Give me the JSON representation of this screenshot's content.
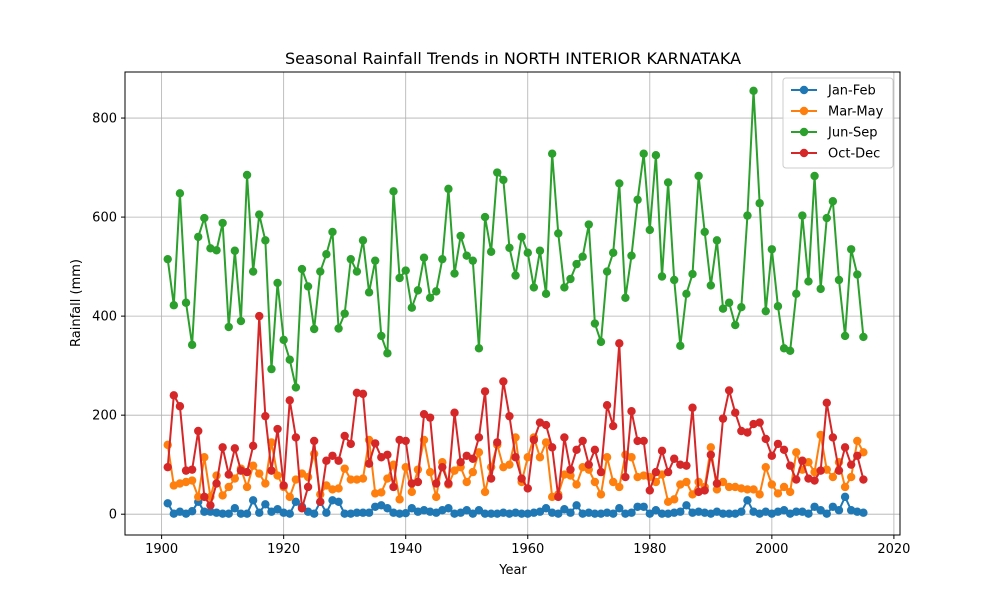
{
  "chart_data": {
    "type": "line",
    "title": "Seasonal Rainfall Trends in NORTH INTERIOR KARNATAKA",
    "xlabel": "Year",
    "ylabel": "Rainfall (mm)",
    "xlim": [
      1894,
      2021
    ],
    "ylim": [
      -42,
      893
    ],
    "xticks": [
      1900,
      1920,
      1940,
      1960,
      1980,
      2000,
      2020
    ],
    "yticks": [
      0,
      200,
      400,
      600,
      800
    ],
    "grid": true,
    "legend_position": "top-right",
    "x": [
      1901,
      1902,
      1903,
      1904,
      1905,
      1906,
      1907,
      1908,
      1909,
      1910,
      1911,
      1912,
      1913,
      1914,
      1915,
      1916,
      1917,
      1918,
      1919,
      1920,
      1921,
      1922,
      1923,
      1924,
      1925,
      1926,
      1927,
      1928,
      1929,
      1930,
      1931,
      1932,
      1933,
      1934,
      1935,
      1936,
      1937,
      1938,
      1939,
      1940,
      1941,
      1942,
      1943,
      1944,
      1945,
      1946,
      1947,
      1948,
      1949,
      1950,
      1951,
      1952,
      1953,
      1954,
      1955,
      1956,
      1957,
      1958,
      1959,
      1960,
      1961,
      1962,
      1963,
      1964,
      1965,
      1966,
      1967,
      1968,
      1969,
      1970,
      1971,
      1972,
      1973,
      1974,
      1975,
      1976,
      1977,
      1978,
      1979,
      1980,
      1981,
      1982,
      1983,
      1984,
      1985,
      1986,
      1987,
      1988,
      1989,
      1990,
      1991,
      1992,
      1993,
      1994,
      1995,
      1996,
      1997,
      1998,
      1999,
      2000,
      2001,
      2002,
      2003,
      2004,
      2005,
      2006,
      2007,
      2008,
      2009,
      2010,
      2011,
      2012,
      2013,
      2014,
      2015
    ],
    "series": [
      {
        "name": "Jan-Feb",
        "color": "#1f77b4",
        "values": [
          22,
          1,
          5,
          1,
          6,
          25,
          5,
          5,
          3,
          1,
          1,
          12,
          1,
          1,
          28,
          3,
          20,
          5,
          10,
          3,
          1,
          25,
          15,
          5,
          1,
          25,
          3,
          28,
          25,
          1,
          1,
          3,
          3,
          3,
          15,
          18,
          12,
          3,
          1,
          2,
          12,
          5,
          8,
          5,
          3,
          8,
          12,
          1,
          3,
          8,
          1,
          8,
          1,
          1,
          1,
          3,
          1,
          3,
          1,
          1,
          3,
          5,
          12,
          3,
          1,
          10,
          3,
          18,
          1,
          3,
          1,
          1,
          3,
          1,
          12,
          1,
          3,
          15,
          15,
          1,
          8,
          1,
          1,
          3,
          5,
          18,
          3,
          5,
          3,
          1,
          5,
          1,
          1,
          1,
          5,
          28,
          5,
          1,
          5,
          1,
          5,
          8,
          1,
          5,
          5,
          1,
          15,
          8,
          1,
          15,
          8,
          35,
          8,
          5,
          3
        ]
      },
      {
        "name": "Mar-May",
        "color": "#ff7f0e",
        "values": [
          140,
          58,
          62,
          65,
          68,
          35,
          115,
          35,
          78,
          38,
          55,
          72,
          92,
          55,
          98,
          82,
          62,
          145,
          78,
          55,
          35,
          70,
          82,
          75,
          122,
          40,
          58,
          50,
          52,
          92,
          70,
          70,
          72,
          150,
          42,
          44,
          72,
          100,
          30,
          95,
          45,
          90,
          150,
          85,
          35,
          105,
          60,
          88,
          95,
          65,
          85,
          125,
          45,
          95,
          140,
          95,
          100,
          155,
          65,
          115,
          155,
          115,
          145,
          35,
          40,
          80,
          78,
          60,
          95,
          90,
          65,
          40,
          115,
          65,
          55,
          120,
          115,
          75,
          78,
          75,
          65,
          80,
          25,
          30,
          60,
          65,
          40,
          65,
          55,
          135,
          50,
          65,
          55,
          55,
          52,
          50,
          50,
          40,
          95,
          60,
          42,
          55,
          45,
          125,
          90,
          105,
          85,
          160,
          90,
          75,
          105,
          55,
          75,
          148,
          125
        ]
      },
      {
        "name": "Jun-Sep",
        "color": "#2ca02c",
        "values": [
          515,
          422,
          648,
          427,
          342,
          560,
          598,
          537,
          533,
          588,
          378,
          532,
          390,
          685,
          490,
          605,
          553,
          293,
          467,
          352,
          312,
          256,
          495,
          460,
          374,
          490,
          525,
          570,
          375,
          405,
          515,
          490,
          553,
          448,
          512,
          360,
          325,
          652,
          477,
          492,
          417,
          452,
          518,
          437,
          450,
          515,
          657,
          486,
          562,
          522,
          512,
          335,
          600,
          530,
          690,
          675,
          538,
          482,
          560,
          528,
          458,
          532,
          445,
          728,
          567,
          458,
          475,
          505,
          520,
          585,
          385,
          348,
          490,
          528,
          668,
          437,
          522,
          635,
          728,
          574,
          725,
          480,
          670,
          473,
          340,
          445,
          485,
          683,
          570,
          462,
          553,
          415,
          427,
          382,
          418,
          603,
          855,
          628,
          410,
          535,
          420,
          335,
          330,
          445,
          603,
          470,
          683,
          455,
          598,
          632,
          473,
          360,
          535,
          484,
          358
        ]
      },
      {
        "name": "Oct-Dec",
        "color": "#d62728",
        "values": [
          95,
          240,
          218,
          88,
          90,
          168,
          35,
          18,
          62,
          135,
          80,
          133,
          88,
          85,
          138,
          400,
          198,
          88,
          172,
          58,
          230,
          155,
          12,
          55,
          148,
          25,
          108,
          118,
          108,
          158,
          142,
          245,
          243,
          102,
          143,
          115,
          120,
          55,
          150,
          148,
          62,
          65,
          202,
          195,
          62,
          95,
          62,
          205,
          105,
          118,
          112,
          155,
          248,
          72,
          145,
          268,
          198,
          115,
          72,
          52,
          150,
          185,
          180,
          135,
          35,
          155,
          90,
          130,
          148,
          100,
          130,
          85,
          220,
          178,
          345,
          75,
          208,
          148,
          148,
          48,
          85,
          128,
          85,
          112,
          100,
          98,
          215,
          45,
          48,
          120,
          62,
          193,
          250,
          205,
          168,
          165,
          182,
          185,
          152,
          118,
          142,
          130,
          98,
          70,
          108,
          72,
          68,
          88,
          225,
          155,
          88,
          135,
          100,
          118,
          70
        ]
      }
    ]
  }
}
